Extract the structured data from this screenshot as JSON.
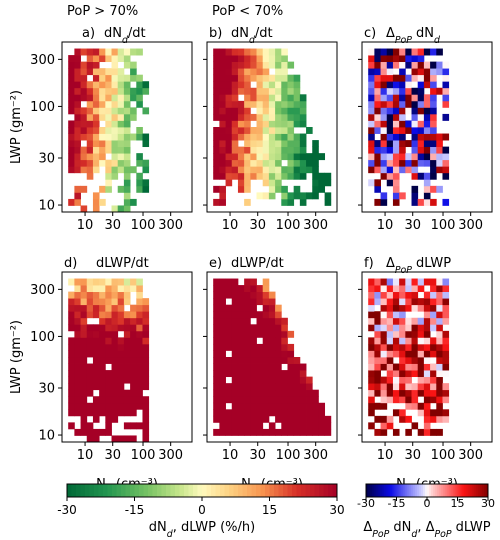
{
  "chart_data": {
    "type": "heatmap",
    "shared": {
      "xlabel": "N_d (cm⁻³)",
      "ylabel": "LWP (gm⁻²)",
      "x_scale": "log",
      "y_scale": "log",
      "xlim": [
        4,
        700
      ],
      "ylim": [
        8.5,
        450
      ],
      "x_ticks": [
        {
          "v": 10,
          "label": "10"
        },
        {
          "v": 30,
          "label": "30"
        },
        {
          "v": 100,
          "label": "100"
        },
        {
          "v": 300,
          "label": "300"
        }
      ],
      "y_ticks": [
        {
          "v": 10,
          "label": "10"
        },
        {
          "v": 30,
          "label": "30"
        },
        {
          "v": 100,
          "label": "100"
        },
        {
          "v": 300,
          "label": "300"
        }
      ]
    },
    "header_labels": [
      "PoP > 70%",
      "PoP < 70%"
    ],
    "panels": [
      {
        "id": "a",
        "letter": "a)",
        "title": "dN_d/dt",
        "cmap": "rdylgn",
        "vmin": -30,
        "vmax": 30,
        "pattern": "dN_pop_high"
      },
      {
        "id": "b",
        "letter": "b)",
        "title": "dN_d/dt",
        "cmap": "rdylgn",
        "vmin": -30,
        "vmax": 30,
        "pattern": "dN_pop_low"
      },
      {
        "id": "c",
        "letter": "c)",
        "title": "Δ_PoP dN_d",
        "cmap": "seismic",
        "vmin": -30,
        "vmax": 30,
        "pattern": "delta_dN"
      },
      {
        "id": "d",
        "letter": "d)",
        "title": "dLWP/dt",
        "cmap": "rdylgn",
        "vmin": -30,
        "vmax": 30,
        "pattern": "dLWP_pop_high"
      },
      {
        "id": "e",
        "letter": "e)",
        "title": "dLWP/dt",
        "cmap": "rdylgn",
        "vmin": -30,
        "vmax": 30,
        "pattern": "dLWP_pop_low"
      },
      {
        "id": "f",
        "letter": "f)",
        "title": "Δ_PoP dLWP",
        "cmap": "seismic",
        "vmin": -30,
        "vmax": 30,
        "pattern": "delta_dLWP"
      }
    ],
    "colorbars": [
      {
        "id": "cb1",
        "cmap": "rdylgn",
        "vmin": -30,
        "vmax": 30,
        "ticks": [
          "-30",
          "-15",
          "0",
          "15",
          "30"
        ],
        "label": "dN_d, dLWP (%/h)"
      },
      {
        "id": "cb2",
        "cmap": "seismic",
        "vmin": -30,
        "vmax": 30,
        "ticks": [
          "-30",
          "-15",
          "0",
          "15",
          "30"
        ],
        "label": "Δ_PoP dN_d, Δ_PoP dLWP"
      }
    ]
  }
}
